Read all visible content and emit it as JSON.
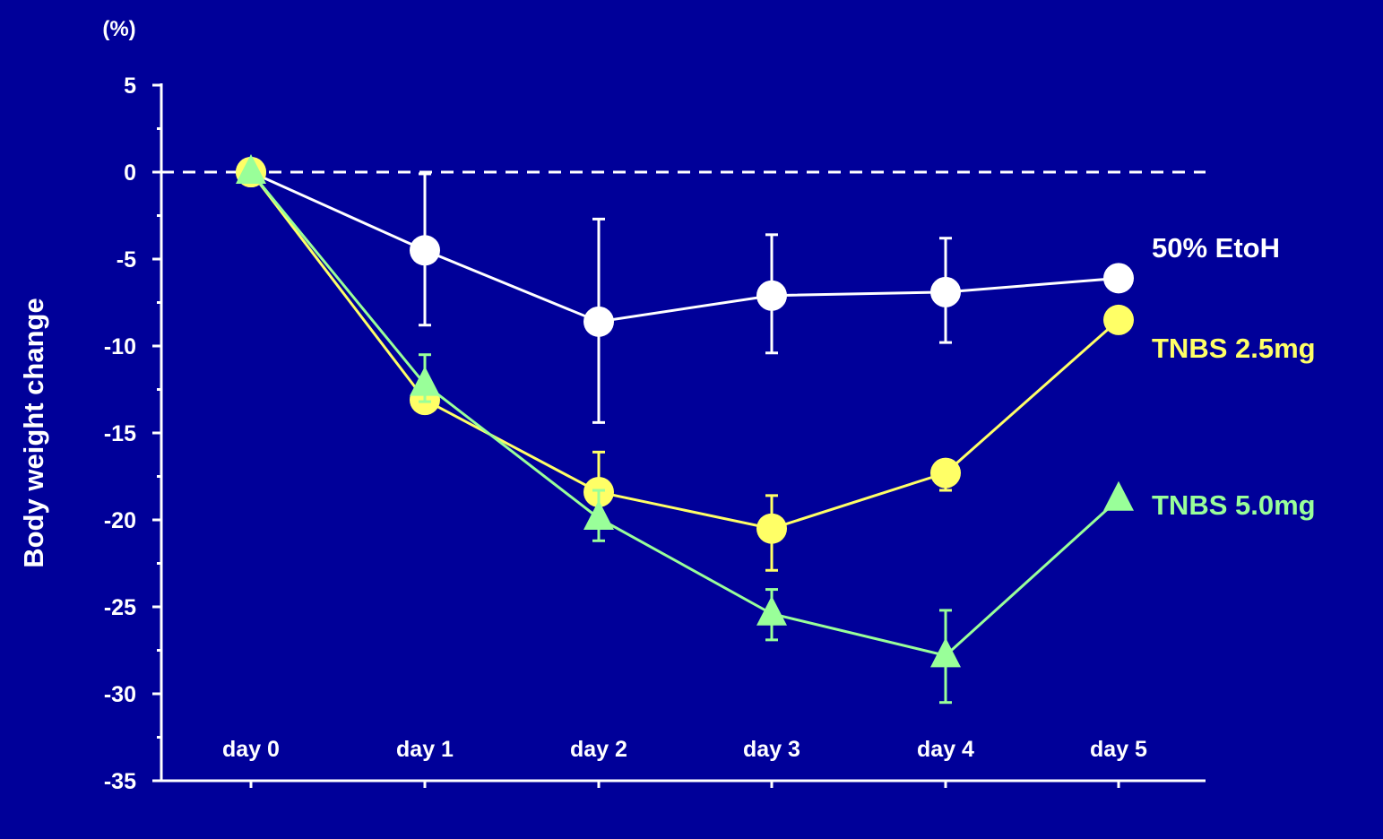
{
  "chart_data": {
    "type": "line",
    "y_unit_label": "(%)",
    "ylabel": "Body weight change",
    "xlabel": "",
    "categories": [
      "day 0",
      "day 1",
      "day 2",
      "day 3",
      "day 4",
      "day 5"
    ],
    "ylim": [
      -35,
      5
    ],
    "yticks": [
      5,
      0,
      -5,
      -10,
      -15,
      -20,
      -25,
      -30,
      -35
    ],
    "grid": false,
    "reference_line": {
      "y": 0,
      "style": "dashed"
    },
    "series": [
      {
        "name": "50% EtoH",
        "marker": "circle",
        "color": "#ffffff",
        "values": [
          0,
          -4.5,
          -8.6,
          -7.1,
          -6.9,
          -6.1
        ],
        "err_low": [
          null,
          -8.8,
          -14.4,
          -10.4,
          -9.8,
          null
        ],
        "err_high": [
          null,
          -0.1,
          -2.7,
          -3.6,
          -3.8,
          null
        ]
      },
      {
        "name": "TNBS 2.5mg",
        "marker": "circle",
        "color": "#ffff66",
        "values": [
          0,
          -13.1,
          -18.4,
          -20.5,
          -17.3,
          -8.5
        ],
        "err_low": [
          null,
          -13.5,
          -18.9,
          -22.9,
          -18.3,
          null
        ],
        "err_high": [
          null,
          -12.5,
          -16.1,
          -18.6,
          -16.8,
          null
        ]
      },
      {
        "name": "TNBS 5.0mg",
        "marker": "triangle",
        "color": "#99ff99",
        "values": [
          0,
          -12.2,
          -19.9,
          -25.4,
          -27.8,
          -18.8
        ],
        "err_low": [
          null,
          -13.2,
          -21.2,
          -26.9,
          -30.5,
          null
        ],
        "err_high": [
          null,
          -10.5,
          -18.3,
          -24.0,
          -25.2,
          null
        ]
      }
    ]
  }
}
